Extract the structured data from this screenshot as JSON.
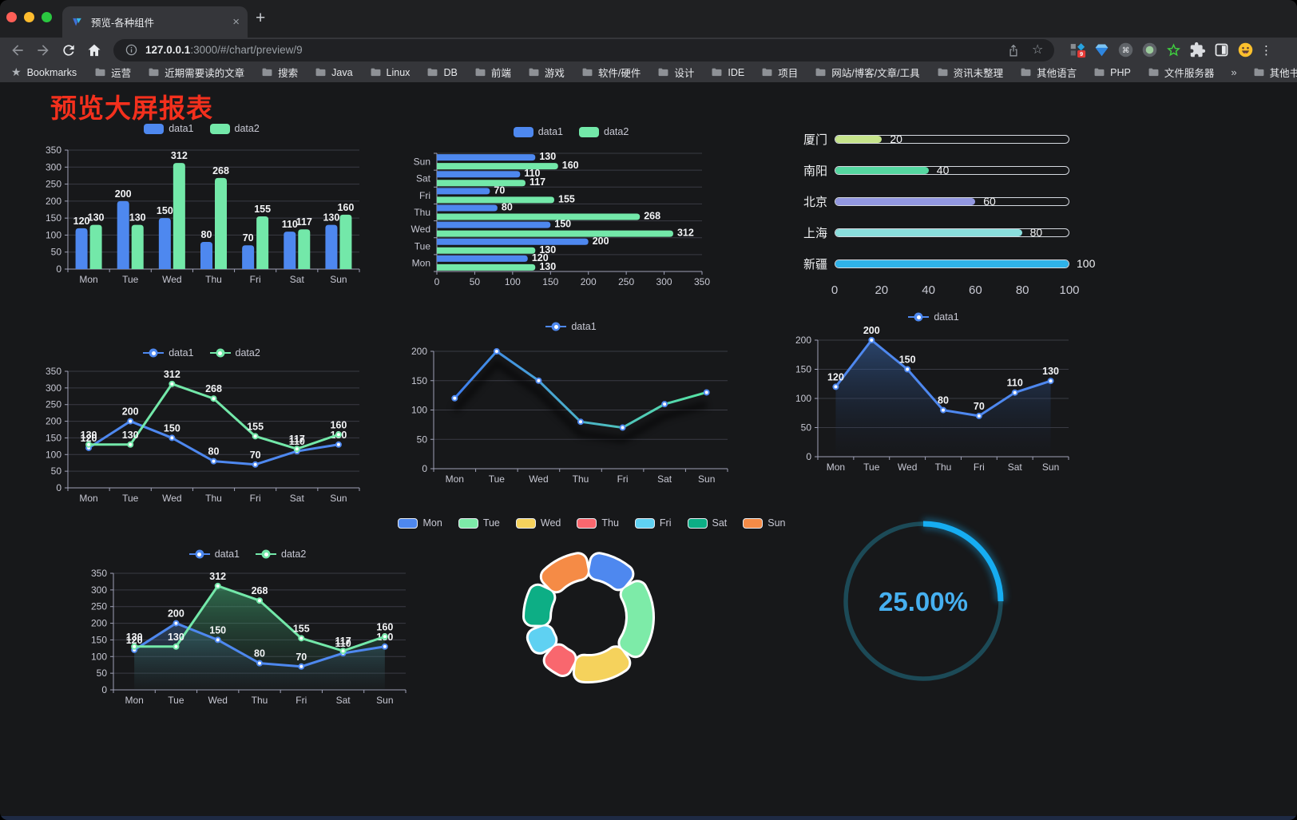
{
  "browser": {
    "tab_title": "预览-各种组件",
    "close_tab": "×",
    "new_tab": "+",
    "url_host": "127.0.0.1",
    "url_path": ":3000/#/chart/preview/9",
    "bookmarks_label": "Bookmarks",
    "bookmarks": [
      "运营",
      "近期需要读的文章",
      "搜索",
      "Java",
      "Linux",
      "DB",
      "前端",
      "游戏",
      "软件/硬件",
      "设计",
      "IDE",
      "项目",
      "网站/博客/文章/工具",
      "资讯未整理",
      "其他语言",
      "PHP",
      "文件服务器"
    ],
    "overflow_chevron": "»",
    "other_bookmarks": "其他书签",
    "extension_badge": "9",
    "kebab": "⋮",
    "traffic_lights": [
      "#FF5F57",
      "#FEBC2E",
      "#2AC840"
    ]
  },
  "page": {
    "title": "预览大屏报表",
    "title_color": "#F3301D"
  },
  "chart_data": [
    {
      "id": "bar-grouped",
      "type": "bar",
      "variant": "vbar",
      "categories": [
        "Mon",
        "Tue",
        "Wed",
        "Thu",
        "Fri",
        "Sat",
        "Sun"
      ],
      "series": [
        {
          "name": "data1",
          "color": "#4E88EF",
          "values": [
            120,
            200,
            150,
            80,
            70,
            110,
            130
          ]
        },
        {
          "name": "data2",
          "color": "#73E8A9",
          "values": [
            130,
            130,
            312,
            268,
            155,
            117,
            160
          ]
        }
      ],
      "ylim": [
        0,
        350
      ],
      "ystep": 50,
      "grid": true,
      "legend_position": "top"
    },
    {
      "id": "bar-horizontal",
      "type": "bar",
      "variant": "hbar",
      "categories": [
        "Mon",
        "Tue",
        "Wed",
        "Thu",
        "Fri",
        "Sat",
        "Sun"
      ],
      "series": [
        {
          "name": "data1",
          "color": "#4E88EF",
          "values": [
            120,
            200,
            150,
            80,
            70,
            110,
            130
          ]
        },
        {
          "name": "data2",
          "color": "#73E8A9",
          "values": [
            130,
            130,
            312,
            268,
            155,
            117,
            160
          ]
        }
      ],
      "xlim": [
        0,
        350
      ],
      "xticks": [
        0,
        50,
        100,
        150,
        200,
        250,
        300,
        350
      ],
      "legend_position": "top"
    },
    {
      "id": "progress-bars",
      "type": "bar",
      "variant": "progress",
      "items": [
        {
          "label": "厦门",
          "value": 20,
          "color": "#C6E48B"
        },
        {
          "label": "南阳",
          "value": 40,
          "color": "#55D7A0"
        },
        {
          "label": "北京",
          "value": 60,
          "color": "#9297E0"
        },
        {
          "label": "上海",
          "value": 80,
          "color": "#8ADEDD"
        },
        {
          "label": "新疆",
          "value": 100,
          "color": "#2FB2E8"
        }
      ],
      "max": 100,
      "axis_ticks": [
        0,
        20,
        40,
        60,
        80,
        100
      ]
    },
    {
      "id": "line-two-series",
      "type": "line",
      "variant": "line",
      "categories": [
        "Mon",
        "Tue",
        "Wed",
        "Thu",
        "Fri",
        "Sat",
        "Sun"
      ],
      "series": [
        {
          "name": "data1",
          "color": "#4E88EF",
          "values": [
            120,
            200,
            150,
            80,
            70,
            110,
            130
          ]
        },
        {
          "name": "data2",
          "color": "#73E8A9",
          "values": [
            130,
            130,
            312,
            268,
            155,
            117,
            160
          ]
        }
      ],
      "ylim": [
        0,
        350
      ],
      "ystep": 50,
      "show_labels": true,
      "legend_position": "top"
    },
    {
      "id": "line-gradient",
      "type": "line",
      "variant": "gline",
      "categories": [
        "Mon",
        "Tue",
        "Wed",
        "Thu",
        "Fri",
        "Sat",
        "Sun"
      ],
      "series": [
        {
          "name": "data1",
          "color": "#4E88EF",
          "gradient": [
            "#3E7EF0",
            "#57E6A2"
          ],
          "values": [
            120,
            200,
            150,
            80,
            70,
            110,
            130
          ]
        }
      ],
      "ylim": [
        0,
        200
      ],
      "ystep": 50,
      "show_labels": false,
      "legend_position": "top"
    },
    {
      "id": "line-area",
      "type": "area",
      "variant": "aline",
      "categories": [
        "Mon",
        "Tue",
        "Wed",
        "Thu",
        "Fri",
        "Sat",
        "Sun"
      ],
      "series": [
        {
          "name": "data1",
          "color": "#4E88EF",
          "area": [
            "rgba(58,105,175,0.55)",
            "rgba(25,40,70,0.02)"
          ],
          "values": [
            120,
            200,
            150,
            80,
            70,
            110,
            130
          ]
        }
      ],
      "ylim": [
        0,
        200
      ],
      "ystep": 50,
      "show_labels": true,
      "legend_position": "top"
    },
    {
      "id": "line-area-two",
      "type": "area",
      "variant": "aline2",
      "categories": [
        "Mon",
        "Tue",
        "Wed",
        "Thu",
        "Fri",
        "Sat",
        "Sun"
      ],
      "series": [
        {
          "name": "data1",
          "color": "#4E88EF",
          "area": [
            "rgba(75,125,190,0.40)",
            "rgba(60,90,130,0.02)"
          ],
          "values": [
            120,
            200,
            150,
            80,
            70,
            110,
            130
          ]
        },
        {
          "name": "data2",
          "color": "#73E8A9",
          "area": [
            "rgba(72,190,128,0.50)",
            "rgba(45,90,70,0.03)"
          ],
          "values": [
            130,
            130,
            312,
            268,
            155,
            117,
            160
          ]
        }
      ],
      "ylim": [
        0,
        350
      ],
      "ystep": 50,
      "show_labels": true,
      "legend_position": "top"
    },
    {
      "id": "donut",
      "type": "pie",
      "variant": "donut",
      "items": [
        {
          "label": "Mon",
          "value": 120,
          "color": "#4E88EF"
        },
        {
          "label": "Tue",
          "value": 200,
          "color": "#7DEBA8"
        },
        {
          "label": "Wed",
          "value": 150,
          "color": "#F5D25C"
        },
        {
          "label": "Thu",
          "value": 80,
          "color": "#F9676E"
        },
        {
          "label": "Fri",
          "value": 70,
          "color": "#5FD1F2"
        },
        {
          "label": "Sat",
          "value": 110,
          "color": "#0DAE85"
        },
        {
          "label": "Sun",
          "value": 130,
          "color": "#F58B46"
        }
      ],
      "legend_position": "top",
      "border_color": "#FFFFFF"
    },
    {
      "id": "gauge",
      "type": "gauge",
      "variant": "gauge",
      "value": 25,
      "label": "25.00%",
      "color": "#16ADF2",
      "track_color": "#1C4A57",
      "text_color": "#46B0F0"
    }
  ]
}
